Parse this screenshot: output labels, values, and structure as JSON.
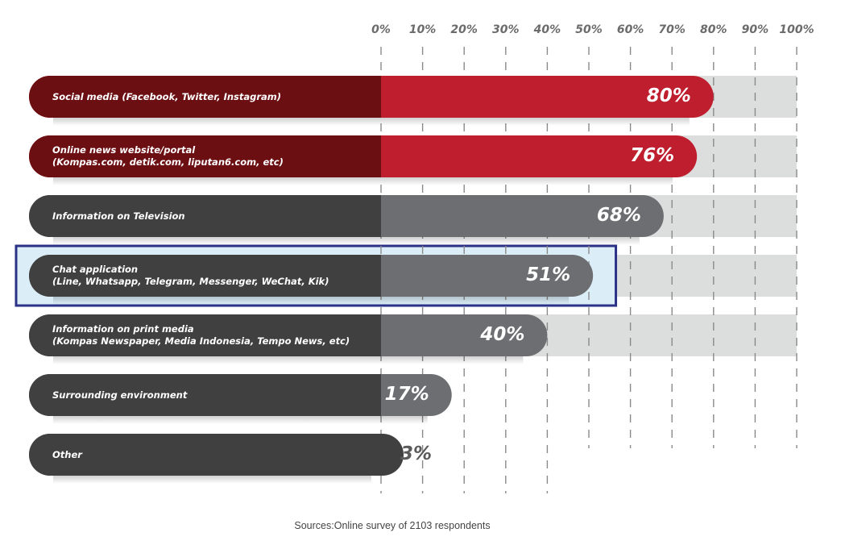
{
  "chart_data": {
    "type": "bar",
    "orientation": "horizontal",
    "title": "",
    "xlabel": "",
    "ylabel": "",
    "xlim": [
      0,
      100
    ],
    "ticks": [
      "0%",
      "10%",
      "20%",
      "30%",
      "40%",
      "50%",
      "60%",
      "70%",
      "80%",
      "90%",
      "100%"
    ],
    "grid": true,
    "categories": [
      "Social media (Facebook, Twitter, Instagram)",
      "Online news website/portal\n(Kompas.com, detik.com, liputan6.com, etc)",
      "Information on Television",
      "Chat application\n(Line, Whatsapp, Telegram, Messenger, WeChat, Kik)",
      "Information on print media\n(Kompas Newspaper, Media Indonesia, Tempo News, etc)",
      "Surrounding environment",
      "Other"
    ],
    "values": [
      80,
      76,
      68,
      51,
      40,
      17,
      3
    ],
    "value_labels": [
      "80%",
      "76%",
      "68%",
      "51%",
      "40%",
      "17%",
      "3%"
    ],
    "highlighted_category": "Chat application\n(Line, Whatsapp, Telegram, Messenger, WeChat, Kik)",
    "source": "Sources:Online survey of 2103 respondents"
  },
  "colors": {
    "red_bar": "#be1e2d",
    "red_label_area": "#6b0f12",
    "gray_bar": "#6d6e71",
    "gray_label_area": "#404041",
    "track": "#dcdddd",
    "highlight_border": "#2b3186",
    "highlight_fill": "#dbeef8",
    "tick_text": "#6b6b6b"
  }
}
